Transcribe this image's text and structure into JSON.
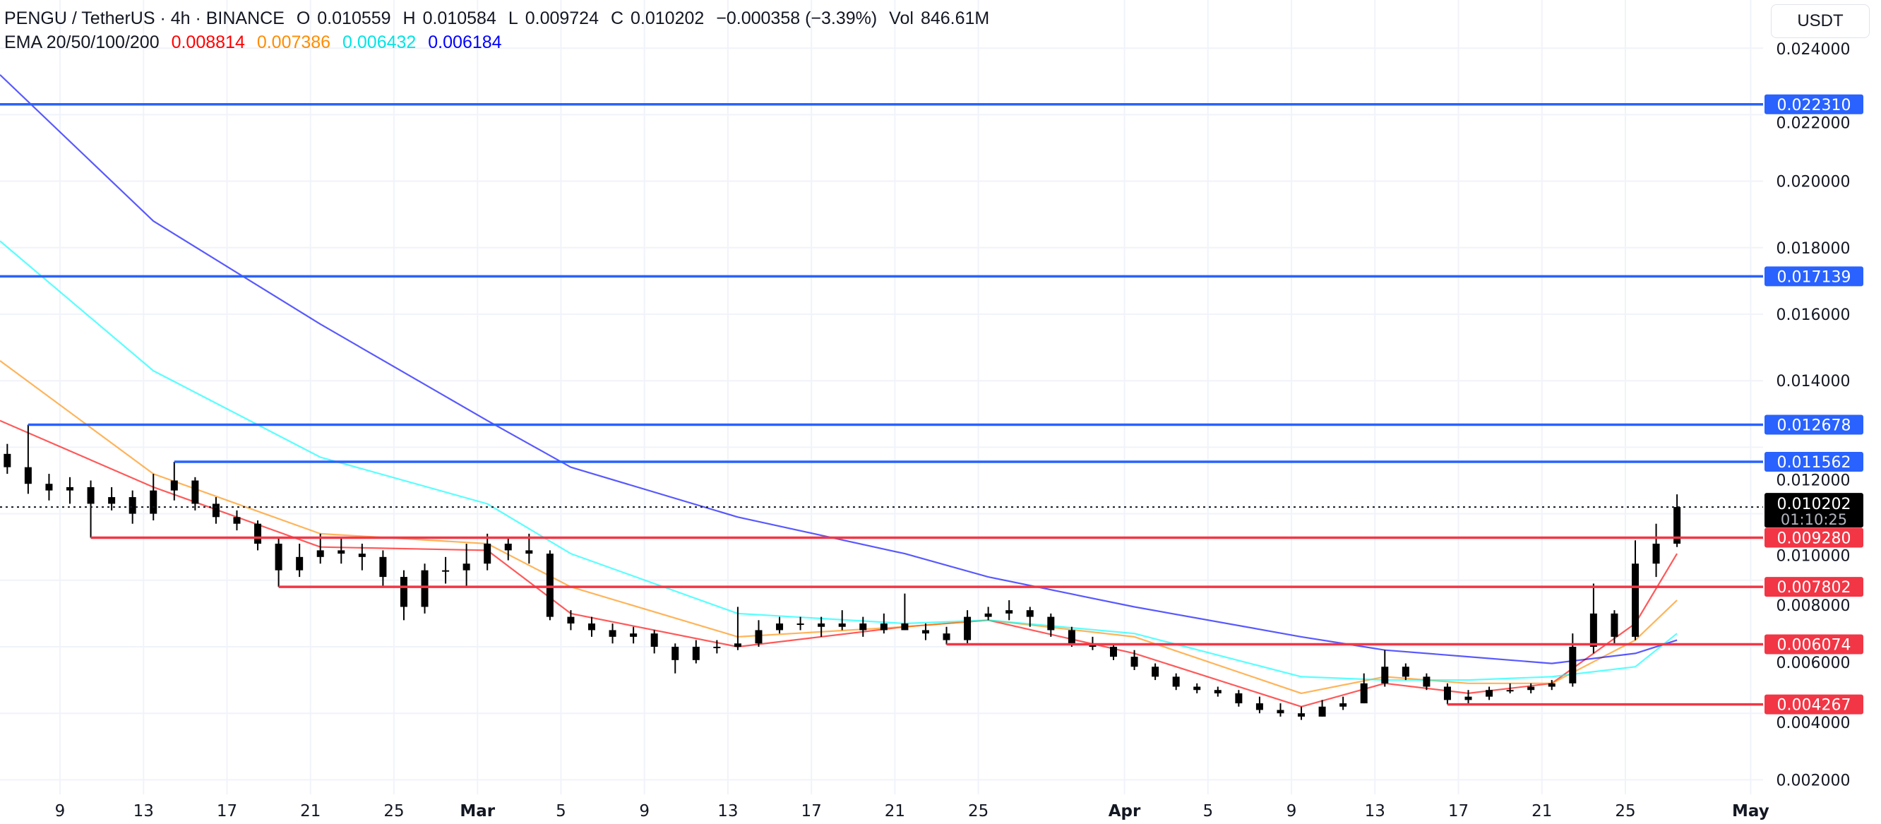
{
  "header": {
    "symbol": "PENGU / TetherUS · 4h · BINANCE",
    "open_label": "O",
    "open": "0.010559",
    "high_label": "H",
    "high": "0.010584",
    "low_label": "L",
    "low": "0.009724",
    "close_label": "C",
    "close": "0.010202",
    "change": "−0.000358 (−3.39%)",
    "volume_label": "Vol",
    "volume": "846.61M"
  },
  "indicator": {
    "name": "EMA 20/50/100/200",
    "values": [
      "0.008814",
      "0.007386",
      "0.006432",
      "0.006184"
    ],
    "colors": [
      "#ff0000",
      "#ff8c00",
      "#00ffff",
      "#0000ff"
    ]
  },
  "currency_button": "USDT",
  "colors": {
    "resistance": "#2962ff",
    "support": "#f23645",
    "candle": "#000000",
    "grid": "#f0f3fa"
  },
  "current_price": {
    "value": "0.010202",
    "countdown": "01:10:25"
  },
  "chart_data": {
    "type": "candlestick",
    "title": "",
    "ylim": [
      0.0016,
      0.0246
    ],
    "y_ticks": [
      "0.024000",
      "0.022000",
      "0.020000",
      "0.018000",
      "0.016000",
      "0.014000",
      "0.012000",
      "0.010000",
      "0.008000",
      "0.006000",
      "0.004000",
      "0.002000"
    ],
    "x_ticks": [
      "9",
      "13",
      "17",
      "21",
      "25",
      "Mar",
      "5",
      "9",
      "13",
      "17",
      "21",
      "25",
      "Apr",
      "5",
      "9",
      "13",
      "17",
      "21",
      "25",
      "May"
    ],
    "x_tick_dates": [
      "Feb 9",
      "Feb 13",
      "Feb 17",
      "Feb 21",
      "Feb 25",
      "Mar 1",
      "Mar 5",
      "Mar 9",
      "Mar 13",
      "Mar 17",
      "Mar 21",
      "Mar 25",
      "Apr 1",
      "Apr 5",
      "Apr 9",
      "Apr 13",
      "Apr 17",
      "Apr 21",
      "Apr 25",
      "May 1"
    ],
    "grid": true,
    "candles_columns": [
      "date",
      "open",
      "high",
      "low",
      "close"
    ],
    "candles": [
      [
        "Feb 6",
        0.0118,
        0.0121,
        0.0112,
        0.0114
      ],
      [
        "Feb 7",
        0.0114,
        0.012678,
        0.0106,
        0.0109
      ],
      [
        "Feb 8",
        0.0109,
        0.0112,
        0.0104,
        0.0107
      ],
      [
        "Feb 9",
        0.0107,
        0.0111,
        0.0103,
        0.0108
      ],
      [
        "Feb 10",
        0.0108,
        0.011,
        0.00928,
        0.0103
      ],
      [
        "Feb 11",
        0.0103,
        0.0108,
        0.0101,
        0.0105
      ],
      [
        "Feb 12",
        0.0105,
        0.0107,
        0.0097,
        0.01
      ],
      [
        "Feb 13",
        0.01,
        0.0112,
        0.0098,
        0.0107
      ],
      [
        "Feb 14",
        0.0107,
        0.011562,
        0.0104,
        0.011
      ],
      [
        "Feb 15",
        0.011,
        0.0111,
        0.0101,
        0.0103
      ],
      [
        "Feb 16",
        0.0103,
        0.0105,
        0.0097,
        0.0099
      ],
      [
        "Feb 17",
        0.0099,
        0.0101,
        0.0095,
        0.0097
      ],
      [
        "Feb 18",
        0.0097,
        0.0098,
        0.0089,
        0.0091
      ],
      [
        "Feb 19",
        0.0091,
        0.0093,
        0.007802,
        0.0083
      ],
      [
        "Feb 20",
        0.0083,
        0.0091,
        0.0081,
        0.0087
      ],
      [
        "Feb 21",
        0.0087,
        0.0094,
        0.0085,
        0.0089
      ],
      [
        "Feb 22",
        0.0089,
        0.0093,
        0.0085,
        0.0088
      ],
      [
        "Feb 23",
        0.0088,
        0.0091,
        0.0083,
        0.0087
      ],
      [
        "Feb 24",
        0.0087,
        0.0089,
        0.0078,
        0.0081
      ],
      [
        "Feb 25",
        0.0081,
        0.0083,
        0.0068,
        0.0072
      ],
      [
        "Feb 26",
        0.0072,
        0.0085,
        0.007,
        0.0083
      ],
      [
        "Feb 27",
        0.0083,
        0.0087,
        0.0079,
        0.0083
      ],
      [
        "Feb 28",
        0.0083,
        0.0091,
        0.0078,
        0.0085
      ],
      [
        "Mar 1",
        0.0085,
        0.0094,
        0.0083,
        0.0091
      ],
      [
        "Mar 2",
        0.0091,
        0.0093,
        0.0086,
        0.0089
      ],
      [
        "Mar 3",
        0.0089,
        0.0094,
        0.0085,
        0.0088
      ],
      [
        "Mar 4",
        0.0088,
        0.0089,
        0.0068,
        0.0069
      ],
      [
        "Mar 5",
        0.0069,
        0.0071,
        0.0065,
        0.0067
      ],
      [
        "Mar 6",
        0.0067,
        0.0069,
        0.0063,
        0.0065
      ],
      [
        "Mar 7",
        0.0065,
        0.0067,
        0.0061,
        0.0063
      ],
      [
        "Mar 8",
        0.0063,
        0.0066,
        0.0061,
        0.0064
      ],
      [
        "Mar 9",
        0.0064,
        0.0065,
        0.0058,
        0.006
      ],
      [
        "Mar 10",
        0.006,
        0.0061,
        0.0052,
        0.0056
      ],
      [
        "Mar 11",
        0.0056,
        0.0062,
        0.0055,
        0.006
      ],
      [
        "Mar 12",
        0.006,
        0.0062,
        0.0058,
        0.006
      ],
      [
        "Mar 13",
        0.006,
        0.0072,
        0.0059,
        0.0061
      ],
      [
        "Mar 14",
        0.0061,
        0.0068,
        0.006,
        0.0065
      ],
      [
        "Mar 15",
        0.0065,
        0.0069,
        0.0064,
        0.0067
      ],
      [
        "Mar 16",
        0.0067,
        0.0069,
        0.0065,
        0.0067
      ],
      [
        "Mar 17",
        0.0067,
        0.0069,
        0.0063,
        0.0066
      ],
      [
        "Mar 18",
        0.0066,
        0.0071,
        0.0065,
        0.0067
      ],
      [
        "Mar 19",
        0.0067,
        0.0069,
        0.0063,
        0.0065
      ],
      [
        "Mar 20",
        0.0065,
        0.007,
        0.0064,
        0.0067
      ],
      [
        "Mar 21",
        0.0067,
        0.0076,
        0.0065,
        0.0065
      ],
      [
        "Mar 22",
        0.0065,
        0.0067,
        0.0062,
        0.0064
      ],
      [
        "Mar 23",
        0.0064,
        0.0066,
        0.00607,
        0.0062
      ],
      [
        "Mar 24",
        0.0062,
        0.0071,
        0.0061,
        0.0069
      ],
      [
        "Mar 25",
        0.0069,
        0.0072,
        0.0068,
        0.007
      ],
      [
        "Mar 26",
        0.007,
        0.0074,
        0.0068,
        0.0071
      ],
      [
        "Mar 27",
        0.0071,
        0.0072,
        0.0066,
        0.0069
      ],
      [
        "Mar 28",
        0.0069,
        0.007,
        0.0063,
        0.0065
      ],
      [
        "Mar 29",
        0.0065,
        0.0066,
        0.006,
        0.0061
      ],
      [
        "Mar 30",
        0.0061,
        0.0063,
        0.0059,
        0.006
      ],
      [
        "Mar 31",
        0.006,
        0.0061,
        0.0056,
        0.0057
      ],
      [
        "Apr 1",
        0.0057,
        0.0059,
        0.0053,
        0.0054
      ],
      [
        "Apr 2",
        0.0054,
        0.0055,
        0.005,
        0.0051
      ],
      [
        "Apr 3",
        0.0051,
        0.0052,
        0.0047,
        0.0048
      ],
      [
        "Apr 4",
        0.0048,
        0.0049,
        0.0046,
        0.0047
      ],
      [
        "Apr 5",
        0.0047,
        0.0048,
        0.0045,
        0.0046
      ],
      [
        "Apr 6",
        0.0046,
        0.0047,
        0.0042,
        0.0043
      ],
      [
        "Apr 7",
        0.0043,
        0.0045,
        0.004,
        0.0041
      ],
      [
        "Apr 8",
        0.0041,
        0.0043,
        0.0039,
        0.004
      ],
      [
        "Apr 9",
        0.004,
        0.0042,
        0.0038,
        0.0039
      ],
      [
        "Apr 10",
        0.0039,
        0.0044,
        0.0039,
        0.0042
      ],
      [
        "Apr 11",
        0.0042,
        0.0045,
        0.0041,
        0.0043
      ],
      [
        "Apr 12",
        0.0043,
        0.0052,
        0.0043,
        0.0049
      ],
      [
        "Apr 13",
        0.0049,
        0.0059,
        0.0048,
        0.0054
      ],
      [
        "Apr 14",
        0.0054,
        0.0055,
        0.005,
        0.0051
      ],
      [
        "Apr 15",
        0.0051,
        0.0052,
        0.0047,
        0.0048
      ],
      [
        "Apr 16",
        0.0048,
        0.0049,
        0.00427,
        0.0044
      ],
      [
        "Apr 17",
        0.0044,
        0.0047,
        0.0043,
        0.0045
      ],
      [
        "Apr 18",
        0.0045,
        0.0048,
        0.0044,
        0.0047
      ],
      [
        "Apr 19",
        0.0047,
        0.0049,
        0.0046,
        0.0047
      ],
      [
        "Apr 20",
        0.0047,
        0.0049,
        0.0046,
        0.0048
      ],
      [
        "Apr 21",
        0.0048,
        0.005,
        0.0047,
        0.0049
      ],
      [
        "Apr 22",
        0.0049,
        0.0064,
        0.0048,
        0.006
      ],
      [
        "Apr 23",
        0.006,
        0.0079,
        0.0058,
        0.007
      ],
      [
        "Apr 24",
        0.007,
        0.0071,
        0.0061,
        0.0063
      ],
      [
        "Apr 25",
        0.0063,
        0.0092,
        0.0062,
        0.0085
      ],
      [
        "Apr 26",
        0.0085,
        0.0097,
        0.0081,
        0.0091
      ],
      [
        "Apr 27",
        0.0091,
        0.010584,
        0.009,
        0.010202
      ]
    ],
    "ema_dates": [
      "Feb 6",
      "Feb 13",
      "Feb 21",
      "Mar 1",
      "Mar 5",
      "Mar 13",
      "Mar 21",
      "Mar 25",
      "Apr 1",
      "Apr 9",
      "Apr 13",
      "Apr 17",
      "Apr 21",
      "Apr 25",
      "Apr 27"
    ],
    "series": [
      {
        "name": "EMA 20",
        "color": "#ff0000",
        "values": [
          0.0128,
          0.0108,
          0.009,
          0.0089,
          0.007,
          0.006,
          0.0066,
          0.0068,
          0.0058,
          0.0042,
          0.0049,
          0.0046,
          0.0049,
          0.0067,
          0.0088
        ]
      },
      {
        "name": "EMA 50",
        "color": "#ff8c00",
        "values": [
          0.0146,
          0.0112,
          0.0094,
          0.0091,
          0.0078,
          0.0063,
          0.0066,
          0.0068,
          0.0063,
          0.0046,
          0.0051,
          0.0049,
          0.0049,
          0.0062,
          0.0074
        ]
      },
      {
        "name": "EMA 100",
        "color": "#00ffff",
        "values": [
          0.0182,
          0.0143,
          0.0117,
          0.0103,
          0.0088,
          0.007,
          0.0067,
          0.0068,
          0.0064,
          0.0051,
          0.005,
          0.005,
          0.0051,
          0.0054,
          0.0064
        ]
      },
      {
        "name": "EMA 200",
        "color": "#0000ff",
        "values": [
          0.0232,
          0.0188,
          0.0157,
          0.0128,
          0.0114,
          0.0099,
          0.0088,
          0.0081,
          0.0072,
          0.0063,
          0.0059,
          0.0057,
          0.0055,
          0.0058,
          0.0062
        ]
      }
    ],
    "levels": [
      {
        "value": "0.022310",
        "kind": "resistance",
        "from": "Feb 6"
      },
      {
        "value": "0.017139",
        "kind": "resistance",
        "from": "Feb 6"
      },
      {
        "value": "0.012678",
        "kind": "resistance",
        "from": "Feb 7"
      },
      {
        "value": "0.011562",
        "kind": "resistance",
        "from": "Feb 14"
      },
      {
        "value": "0.009280",
        "kind": "support",
        "from": "Feb 10"
      },
      {
        "value": "0.007802",
        "kind": "support",
        "from": "Feb 19"
      },
      {
        "value": "0.006074",
        "kind": "support",
        "from": "Mar 23"
      },
      {
        "value": "0.004267",
        "kind": "support",
        "from": "Apr 16"
      }
    ]
  }
}
